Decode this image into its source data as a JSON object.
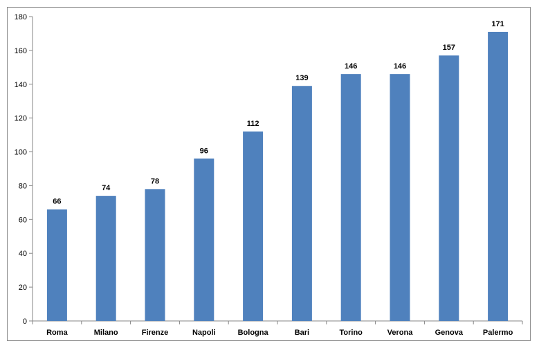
{
  "chart_data": {
    "type": "bar",
    "title": "",
    "xlabel": "",
    "ylabel": "",
    "categories": [
      "Roma",
      "Milano",
      "Firenze",
      "Napoli",
      "Bologna",
      "Bari",
      "Torino",
      "Verona",
      "Genova",
      "Palermo"
    ],
    "values": [
      66,
      74,
      78,
      96,
      112,
      139,
      146,
      146,
      157,
      171
    ],
    "ylim": [
      0,
      180
    ],
    "yticks": [
      "0",
      "20",
      "40",
      "60",
      "80",
      "100",
      "120",
      "140",
      "160",
      "180"
    ],
    "grid": false,
    "legend": "none",
    "bar_color": "#4f81bd",
    "data_labels": true
  }
}
